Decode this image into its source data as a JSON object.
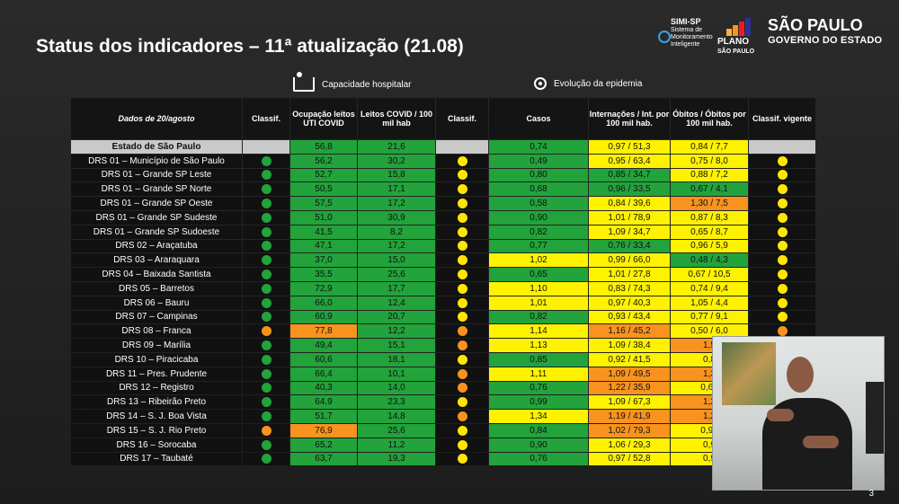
{
  "title": "Status dos indicadores – 11ª atualização (21.08)",
  "logos": {
    "simi_name": "SIMI-SP",
    "simi_sub": "Sistema de Monitoramento Inteligente",
    "plano_title": "PLANO",
    "plano_sub": "SÃO PAULO",
    "sp_title": "SÃO PAULO",
    "sp_sub": "GOVERNO DO ESTADO"
  },
  "groups": {
    "hospital": "Capacidade hospitalar",
    "epidemic": "Evolução da epidemia"
  },
  "headers": {
    "date": "Dados de 20/agosto",
    "classif1": "Classif.",
    "uti": "Ocupação leitos UTI COVID",
    "leitos": "Leitos COVID / 100 mil hab",
    "classif2": "Classif.",
    "casos": "Casos",
    "internacoes": "Internações / Int. por 100 mil hab.",
    "obitos": "Óbitos / Óbitos por 100 mil hab.",
    "vigente": "Classif. vigente"
  },
  "colors": {
    "green": "#22a33b",
    "yellow": "#fff200",
    "orange": "#f7931e",
    "gray": "#c9c9c9"
  },
  "rows": [
    {
      "name": "Estado de São Paulo",
      "c1": "",
      "uti": "56,8",
      "uti_c": "g",
      "leitos": "21,6",
      "leitos_c": "g",
      "c2": "",
      "casos": "0,74",
      "casos_c": "g",
      "int": "0,97 / 51,3",
      "int_c": "y",
      "obi": "0,84 / 7,7",
      "obi_c": "y",
      "vig": ""
    },
    {
      "name": "DRS 01 – Município de São Paulo",
      "c1": "g",
      "uti": "56,2",
      "uti_c": "g",
      "leitos": "30,2",
      "leitos_c": "g",
      "c2": "y",
      "casos": "0,49",
      "casos_c": "g",
      "int": "0,95 / 63,4",
      "int_c": "y",
      "obi": "0,75 / 8,0",
      "obi_c": "y",
      "vig": "y"
    },
    {
      "name": "DRS 01 – Grande SP Leste",
      "c1": "g",
      "uti": "52,7",
      "uti_c": "g",
      "leitos": "15,8",
      "leitos_c": "g",
      "c2": "y",
      "casos": "0,80",
      "casos_c": "g",
      "int": "0,85 / 34,7",
      "int_c": "g",
      "obi": "0,88 / 7,2",
      "obi_c": "y",
      "vig": "y"
    },
    {
      "name": "DRS 01 – Grande SP Norte",
      "c1": "g",
      "uti": "50,5",
      "uti_c": "g",
      "leitos": "17,1",
      "leitos_c": "g",
      "c2": "y",
      "casos": "0,68",
      "casos_c": "g",
      "int": "0,96 / 33,5",
      "int_c": "g",
      "obi": "0,67 / 4,1",
      "obi_c": "g",
      "vig": "y"
    },
    {
      "name": "DRS 01 – Grande SP Oeste",
      "c1": "g",
      "uti": "57,5",
      "uti_c": "g",
      "leitos": "17,2",
      "leitos_c": "g",
      "c2": "y",
      "casos": "0,58",
      "casos_c": "g",
      "int": "0,84 / 39,6",
      "int_c": "y",
      "obi": "1,30 / 7,5",
      "obi_c": "o",
      "vig": "y"
    },
    {
      "name": "DRS 01 – Grande SP Sudeste",
      "c1": "g",
      "uti": "51,0",
      "uti_c": "g",
      "leitos": "30,9",
      "leitos_c": "g",
      "c2": "y",
      "casos": "0,90",
      "casos_c": "g",
      "int": "1,01 / 78,9",
      "int_c": "y",
      "obi": "0,87 / 8,3",
      "obi_c": "y",
      "vig": "y"
    },
    {
      "name": "DRS 01 – Grande SP Sudoeste",
      "c1": "g",
      "uti": "41,5",
      "uti_c": "g",
      "leitos": "8,2",
      "leitos_c": "g",
      "c2": "y",
      "casos": "0,82",
      "casos_c": "g",
      "int": "1,09 / 34,7",
      "int_c": "y",
      "obi": "0,65 / 8,7",
      "obi_c": "y",
      "vig": "y"
    },
    {
      "name": "DRS 02 – Araçatuba",
      "c1": "g",
      "uti": "47,1",
      "uti_c": "g",
      "leitos": "17,2",
      "leitos_c": "g",
      "c2": "y",
      "casos": "0,77",
      "casos_c": "g",
      "int": "0,76 / 33,4",
      "int_c": "g",
      "obi": "0,96 / 5,9",
      "obi_c": "y",
      "vig": "y"
    },
    {
      "name": "DRS 03 – Araraquara",
      "c1": "g",
      "uti": "37,0",
      "uti_c": "g",
      "leitos": "15,0",
      "leitos_c": "g",
      "c2": "y",
      "casos": "1,02",
      "casos_c": "y",
      "int": "0,99 / 66,0",
      "int_c": "y",
      "obi": "0,48 / 4,3",
      "obi_c": "g",
      "vig": "y"
    },
    {
      "name": "DRS 04 – Baixada Santista",
      "c1": "g",
      "uti": "35,5",
      "uti_c": "g",
      "leitos": "25,6",
      "leitos_c": "g",
      "c2": "y",
      "casos": "0,65",
      "casos_c": "g",
      "int": "1,01 / 27,8",
      "int_c": "y",
      "obi": "0,67 / 10,5",
      "obi_c": "y",
      "vig": "y"
    },
    {
      "name": "DRS 05 – Barretos",
      "c1": "g",
      "uti": "72,9",
      "uti_c": "g",
      "leitos": "17,7",
      "leitos_c": "g",
      "c2": "y",
      "casos": "1,10",
      "casos_c": "y",
      "int": "0,83 / 74,3",
      "int_c": "y",
      "obi": "0,74 / 9,4",
      "obi_c": "y",
      "vig": "y"
    },
    {
      "name": "DRS 06 – Bauru",
      "c1": "g",
      "uti": "66,0",
      "uti_c": "g",
      "leitos": "12,4",
      "leitos_c": "g",
      "c2": "y",
      "casos": "1,01",
      "casos_c": "y",
      "int": "0,97 / 40,3",
      "int_c": "y",
      "obi": "1,05 / 4,4",
      "obi_c": "y",
      "vig": "y"
    },
    {
      "name": "DRS 07 – Campinas",
      "c1": "g",
      "uti": "60,9",
      "uti_c": "g",
      "leitos": "20,7",
      "leitos_c": "g",
      "c2": "y",
      "casos": "0,82",
      "casos_c": "g",
      "int": "0,93 / 43,4",
      "int_c": "y",
      "obi": "0,77 / 9,1",
      "obi_c": "y",
      "vig": "y"
    },
    {
      "name": "DRS 08 – Franca",
      "c1": "o",
      "uti": "77,8",
      "uti_c": "o",
      "leitos": "12,2",
      "leitos_c": "g",
      "c2": "o",
      "casos": "1,14",
      "casos_c": "y",
      "int": "1,16 / 45,2",
      "int_c": "o",
      "obi": "0,50 / 6,0",
      "obi_c": "y",
      "vig": "o"
    },
    {
      "name": "DRS 09 – Marília",
      "c1": "g",
      "uti": "49,4",
      "uti_c": "g",
      "leitos": "15,1",
      "leitos_c": "g",
      "c2": "o",
      "casos": "1,13",
      "casos_c": "y",
      "int": "1,09 / 38,4",
      "int_c": "y",
      "obi": "1,5",
      "obi_c": "o",
      "vig": ""
    },
    {
      "name": "DRS 10 – Piracicaba",
      "c1": "g",
      "uti": "60,6",
      "uti_c": "g",
      "leitos": "18,1",
      "leitos_c": "g",
      "c2": "y",
      "casos": "0,85",
      "casos_c": "g",
      "int": "0,92 / 41,5",
      "int_c": "y",
      "obi": "0,8",
      "obi_c": "y",
      "vig": ""
    },
    {
      "name": "DRS 11 – Pres. Prudente",
      "c1": "g",
      "uti": "66,4",
      "uti_c": "g",
      "leitos": "10,1",
      "leitos_c": "g",
      "c2": "o",
      "casos": "1,11",
      "casos_c": "y",
      "int": "1,09 / 49,5",
      "int_c": "o",
      "obi": "1,3",
      "obi_c": "o",
      "vig": ""
    },
    {
      "name": "DRS 12 – Registro",
      "c1": "g",
      "uti": "40,3",
      "uti_c": "g",
      "leitos": "14,0",
      "leitos_c": "g",
      "c2": "o",
      "casos": "0,76",
      "casos_c": "g",
      "int": "1,22 / 35,9",
      "int_c": "o",
      "obi": "0,61",
      "obi_c": "y",
      "vig": ""
    },
    {
      "name": "DRS 13 – Ribeirão Preto",
      "c1": "g",
      "uti": "64,9",
      "uti_c": "g",
      "leitos": "23,3",
      "leitos_c": "g",
      "c2": "y",
      "casos": "0,99",
      "casos_c": "g",
      "int": "1,09 / 67,3",
      "int_c": "y",
      "obi": "1,2",
      "obi_c": "o",
      "vig": ""
    },
    {
      "name": "DRS 14 – S. J. Boa Vista",
      "c1": "g",
      "uti": "51,7",
      "uti_c": "g",
      "leitos": "14,8",
      "leitos_c": "g",
      "c2": "o",
      "casos": "1,34",
      "casos_c": "y",
      "int": "1,19 / 41,9",
      "int_c": "o",
      "obi": "1,2",
      "obi_c": "o",
      "vig": ""
    },
    {
      "name": "DRS 15 – S. J. Rio Preto",
      "c1": "o",
      "uti": "76,9",
      "uti_c": "o",
      "leitos": "25,6",
      "leitos_c": "g",
      "c2": "y",
      "casos": "0,84",
      "casos_c": "g",
      "int": "1,02 / 79,3",
      "int_c": "o",
      "obi": "0,98",
      "obi_c": "y",
      "vig": ""
    },
    {
      "name": "DRS 16 – Sorocaba",
      "c1": "g",
      "uti": "65,2",
      "uti_c": "g",
      "leitos": "11,2",
      "leitos_c": "g",
      "c2": "y",
      "casos": "0,90",
      "casos_c": "g",
      "int": "1,06 / 29,3",
      "int_c": "y",
      "obi": "0,9",
      "obi_c": "y",
      "vig": ""
    },
    {
      "name": "DRS 17 – Taubaté",
      "c1": "g",
      "uti": "63,7",
      "uti_c": "g",
      "leitos": "19,3",
      "leitos_c": "g",
      "c2": "y",
      "casos": "0,76",
      "casos_c": "g",
      "int": "0,97 / 52,8",
      "int_c": "y",
      "obi": "0,9",
      "obi_c": "y",
      "vig": ""
    }
  ],
  "page_number": "3"
}
